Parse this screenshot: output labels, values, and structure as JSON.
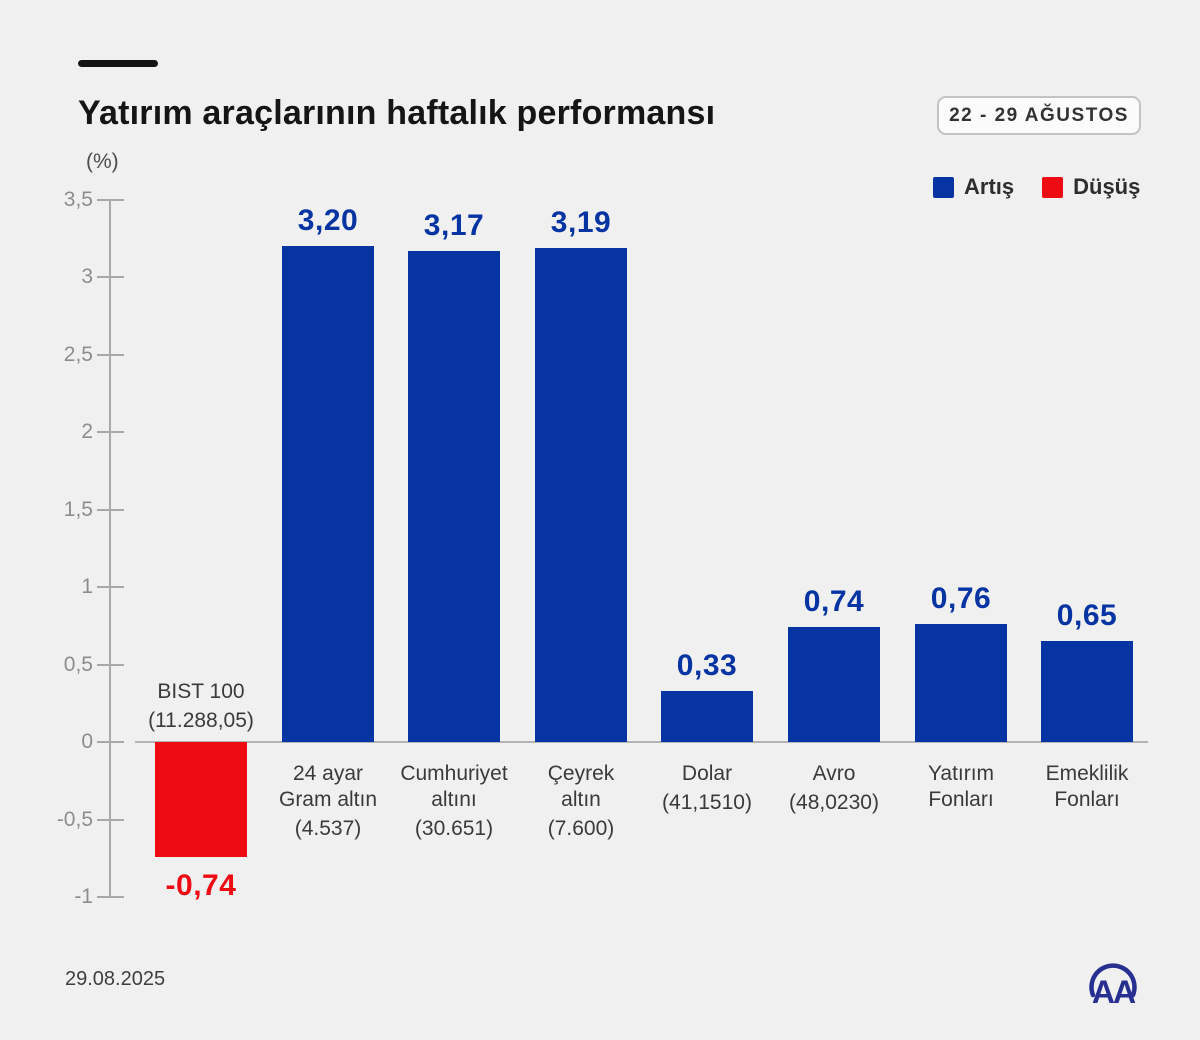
{
  "header": {
    "title": "Yatırım araçlarının haftalık performansı",
    "date_range": "22 - 29 AĞUSTOS"
  },
  "footer": {
    "date": "29.08.2025",
    "agency_logo_text": "AA"
  },
  "chart_data": {
    "type": "bar",
    "title": "Yatırım araçlarının haftalık performansı",
    "unit_label": "(%)",
    "xlabel": "",
    "ylabel": "(%)",
    "ylim": [
      -1,
      3.5
    ],
    "grid": "off",
    "legend_position": "top-right",
    "legend": [
      {
        "label": "Artış",
        "color": "#0634a2"
      },
      {
        "label": "Düşüş",
        "color": "#ee0b14"
      }
    ],
    "yticks": [
      {
        "value": 3.5,
        "label": "3,5"
      },
      {
        "value": 3,
        "label": "3"
      },
      {
        "value": 2.5,
        "label": "2,5"
      },
      {
        "value": 2,
        "label": "2"
      },
      {
        "value": 1.5,
        "label": "1,5"
      },
      {
        "value": 1,
        "label": "1"
      },
      {
        "value": 0.5,
        "label": "0,5"
      },
      {
        "value": 0,
        "label": "0"
      },
      {
        "value": -0.5,
        "label": "-0,5"
      },
      {
        "value": -1,
        "label": "-1"
      }
    ],
    "bars": [
      {
        "name_lines": [
          "BIST 100"
        ],
        "detail": "(11.288,05)",
        "value": -0.74,
        "value_label": "-0,74",
        "label_position": "above-baseline"
      },
      {
        "name_lines": [
          "24 ayar",
          "Gram altın"
        ],
        "detail": "(4.537)",
        "value": 3.2,
        "value_label": "3,20",
        "label_position": "below-baseline"
      },
      {
        "name_lines": [
          "Cumhuriyet",
          "altını"
        ],
        "detail": "(30.651)",
        "value": 3.17,
        "value_label": "3,17",
        "label_position": "below-baseline"
      },
      {
        "name_lines": [
          "Çeyrek",
          "altın"
        ],
        "detail": "(7.600)",
        "value": 3.19,
        "value_label": "3,19",
        "label_position": "below-baseline"
      },
      {
        "name_lines": [
          "Dolar"
        ],
        "detail": "(41,1510)",
        "value": 0.33,
        "value_label": "0,33",
        "label_position": "below-baseline"
      },
      {
        "name_lines": [
          "Avro"
        ],
        "detail": "(48,0230)",
        "value": 0.74,
        "value_label": "0,74",
        "label_position": "below-baseline"
      },
      {
        "name_lines": [
          "Yatırım",
          "Fonları"
        ],
        "detail": null,
        "value": 0.76,
        "value_label": "0,76",
        "label_position": "below-baseline"
      },
      {
        "name_lines": [
          "Emeklilik",
          "Fonları"
        ],
        "detail": null,
        "value": 0.65,
        "value_label": "0,65",
        "label_position": "below-baseline"
      }
    ],
    "colors": {
      "increase": "#0634a2",
      "decrease": "#ee0b14",
      "axis": "#a8a8aa",
      "zero_line": "#b4b4b6",
      "tick_label": "#8d8d8f",
      "category_label": "#3a3a3a",
      "background": "#f0f0f1",
      "logo": "#272f90"
    }
  }
}
